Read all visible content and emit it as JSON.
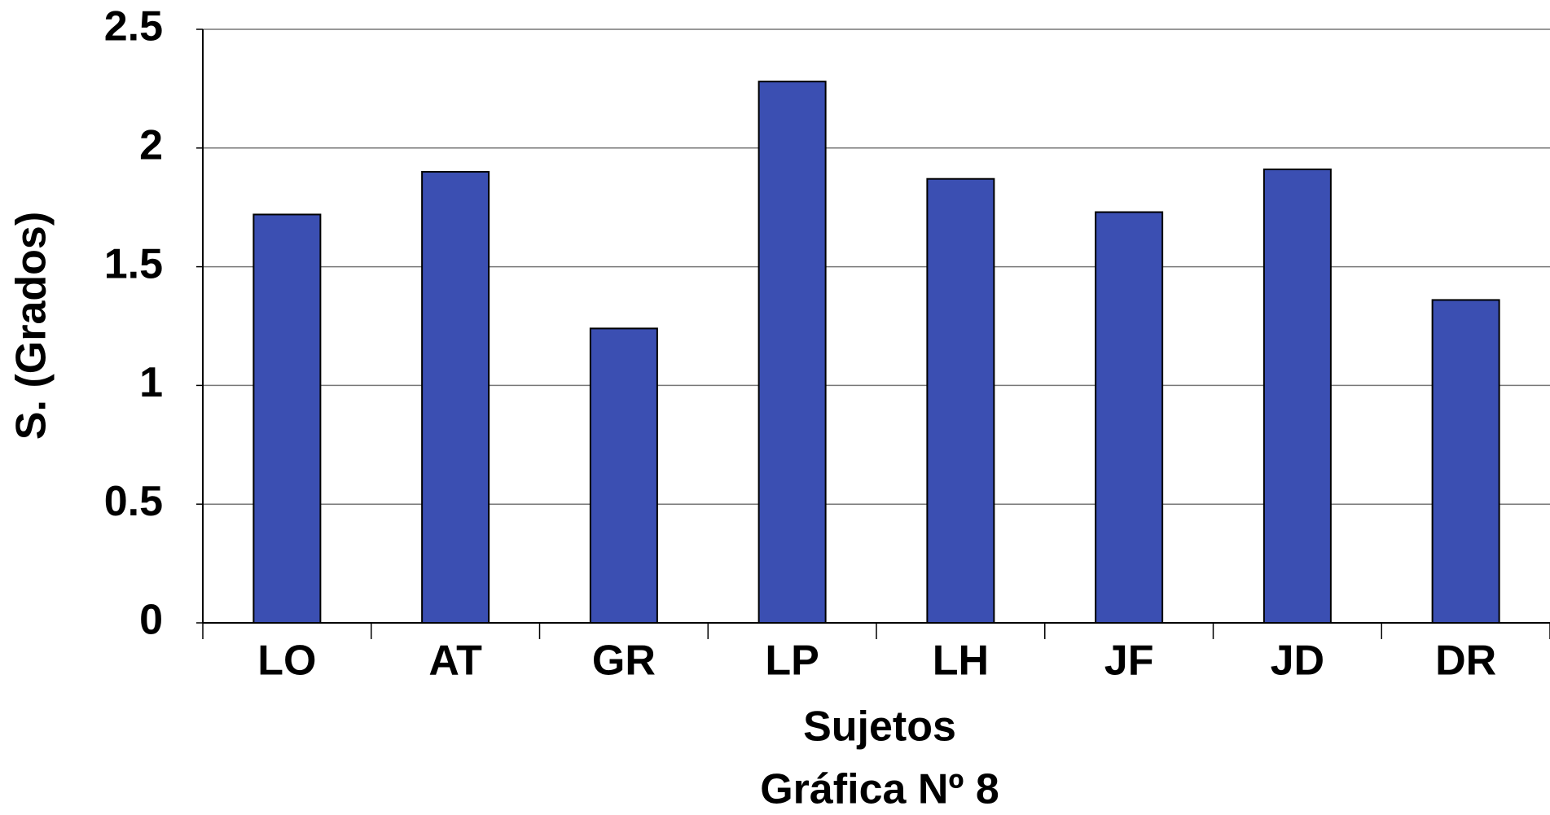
{
  "chart_data": {
    "type": "bar",
    "title": "Gráfica Nº 8",
    "x_label": "Sujetos",
    "y_label": "S. (Grados)",
    "categories": [
      "LO",
      "AT",
      "GR",
      "LP",
      "LH",
      "JF",
      "JD",
      "DR"
    ],
    "values": [
      1.72,
      1.9,
      1.24,
      2.28,
      1.87,
      1.73,
      1.91,
      1.36
    ],
    "color": "#3b4fb2",
    "ylim": [
      0,
      2.5
    ],
    "yticks": [
      0,
      0.5,
      1,
      1.5,
      2,
      2.5
    ],
    "grid": true
  }
}
